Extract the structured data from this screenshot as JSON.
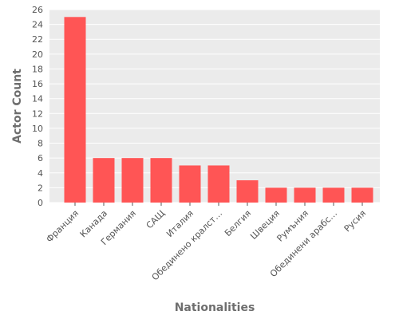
{
  "colors": {
    "plot_background": "#ebebeb",
    "grid": "#ffffff",
    "bar": "#ff5555",
    "text": "#555555",
    "axis_title": "#6e6e6e"
  },
  "chart_data": {
    "type": "bar",
    "title": "",
    "xlabel": "Nationalities",
    "ylabel": "Actor Count",
    "categories": [
      "Франция",
      "Канада",
      "Германия",
      "САЩ",
      "Италия",
      "Обединено кралст…",
      "Белгия",
      "Швеция",
      "Румъния",
      "Обединени арабс…",
      "Русия"
    ],
    "values": [
      25,
      6,
      6,
      6,
      5,
      5,
      3,
      2,
      2,
      2,
      2
    ],
    "ylim": [
      0,
      26
    ],
    "yticks": [
      0,
      2,
      4,
      6,
      8,
      10,
      12,
      14,
      16,
      18,
      20,
      22,
      24,
      26
    ],
    "grid": true,
    "legend": "none"
  }
}
